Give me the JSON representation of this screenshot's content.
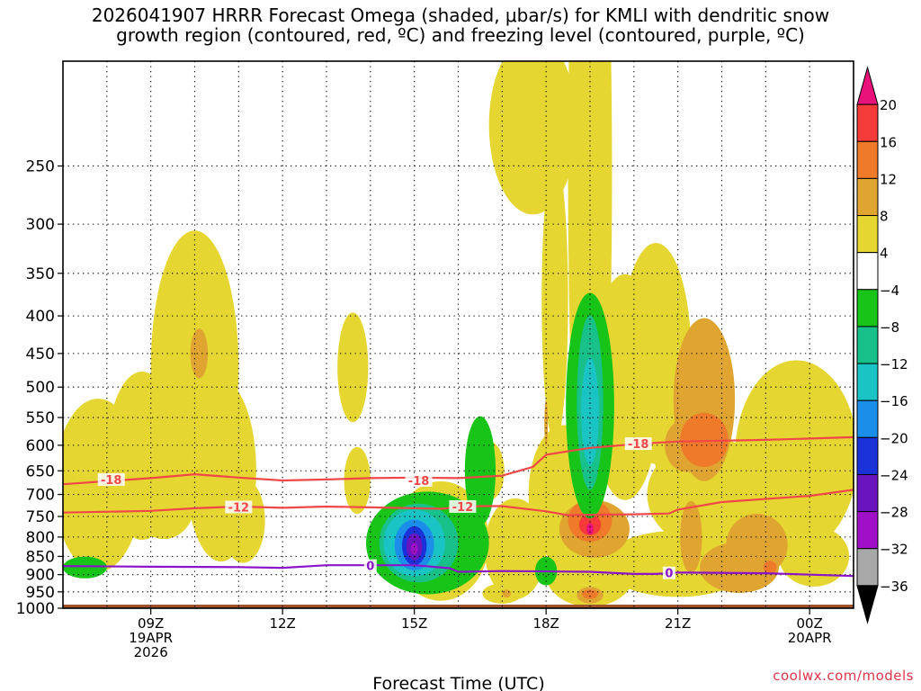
{
  "title_line1": "2026041907 HRRR Forecast Omega (shaded, μbar/s) for KMLI with dendritic snow",
  "title_line2": "growth region (contoured, red, ºC) and freezing level (contoured, purple, ºC)",
  "brand": "coolwx.com/models",
  "chart_data": {
    "type": "heatmap",
    "title": "2026041907 HRRR Forecast Omega (shaded, μbar/s) for KMLI with dendritic snow growth region (contoured, red, ºC) and freezing level (contoured, purple, ºC)",
    "xlabel": "Forecast Time (UTC)",
    "ylabel": "",
    "x_range_hours_since_07Z": [
      0,
      18
    ],
    "y_range_hPa": [
      1000,
      180
    ],
    "y_ticks": [
      250,
      300,
      350,
      400,
      450,
      500,
      550,
      600,
      650,
      700,
      750,
      800,
      850,
      900,
      950,
      1000
    ],
    "x_ticks": [
      {
        "hour": 2,
        "lines": [
          "09Z",
          "19APR",
          "2026"
        ]
      },
      {
        "hour": 5,
        "lines": [
          "12Z"
        ]
      },
      {
        "hour": 8,
        "lines": [
          "15Z"
        ]
      },
      {
        "hour": 11,
        "lines": [
          "18Z"
        ]
      },
      {
        "hour": 14,
        "lines": [
          "21Z"
        ]
      },
      {
        "hour": 17,
        "lines": [
          "00Z",
          "20APR"
        ]
      }
    ],
    "colorbar": {
      "levels": [
        20,
        16,
        12,
        8,
        4,
        -4,
        -8,
        -12,
        -16,
        -20,
        -24,
        -28,
        -32,
        -36
      ],
      "labels": [
        "20",
        "16",
        "12",
        "8",
        "4",
        "−4",
        "−8",
        "−12",
        "−16",
        "−20",
        "−24",
        "−28",
        "−32",
        "−36"
      ],
      "colors": [
        "#e8127a",
        "#f53a3a",
        "#ef7a2a",
        "#dfa530",
        "#e6d632",
        "#ffffff",
        "#18c418",
        "#18c08a",
        "#1ac4c4",
        "#1a8ee8",
        "#1a32d8",
        "#6a14c0",
        "#a010c8",
        "#a8a8a8",
        "#000000"
      ]
    },
    "contours": {
      "snow_minus18": {
        "label": "-18",
        "color": "#f04848",
        "points": [
          [
            -2,
            680
          ],
          [
            0,
            678
          ],
          [
            2,
            665
          ],
          [
            3,
            657
          ],
          [
            4,
            664
          ],
          [
            5,
            670
          ],
          [
            6,
            668
          ],
          [
            7,
            665
          ],
          [
            8,
            664
          ],
          [
            9,
            665
          ],
          [
            10,
            660
          ],
          [
            10.7,
            642
          ],
          [
            11,
            618
          ],
          [
            12,
            605
          ],
          [
            13,
            598
          ],
          [
            14,
            593
          ],
          [
            16,
            590
          ],
          [
            18,
            585
          ]
        ]
      },
      "snow_minus12": {
        "label": "-12",
        "color": "#f04848",
        "points": [
          [
            -2,
            741
          ],
          [
            0,
            741
          ],
          [
            2,
            737
          ],
          [
            3,
            731
          ],
          [
            4,
            727
          ],
          [
            5,
            730
          ],
          [
            6,
            727
          ],
          [
            7,
            729
          ],
          [
            8,
            731
          ],
          [
            8.6,
            732
          ],
          [
            9.5,
            726
          ],
          [
            10,
            726
          ],
          [
            11,
            738
          ],
          [
            11.5,
            747
          ],
          [
            12,
            746
          ],
          [
            13,
            745
          ],
          [
            13.8,
            743
          ],
          [
            14,
            734
          ],
          [
            15,
            717
          ],
          [
            17,
            703
          ],
          [
            18,
            690
          ]
        ]
      },
      "freezing_level": {
        "label": "0",
        "color": "#8a14c8",
        "points": [
          [
            -2,
            876
          ],
          [
            0,
            876
          ],
          [
            2,
            878
          ],
          [
            4,
            879
          ],
          [
            5,
            881
          ],
          [
            6,
            874
          ],
          [
            7,
            874
          ],
          [
            8,
            874
          ],
          [
            8.8,
            882
          ],
          [
            9,
            892
          ],
          [
            10,
            890
          ],
          [
            12,
            892
          ],
          [
            13,
            898
          ],
          [
            13.5,
            898
          ],
          [
            14,
            894
          ],
          [
            16,
            896
          ],
          [
            18,
            904
          ]
        ]
      }
    },
    "contour_label_positions": [
      {
        "label": "-18",
        "x": 1.1,
        "y": 668
      },
      {
        "label": "-18",
        "x": 8.1,
        "y": 670
      },
      {
        "label": "-18",
        "x": 13.1,
        "y": 597
      },
      {
        "label": "-12",
        "x": 4.0,
        "y": 728
      },
      {
        "label": "-12",
        "x": 9.1,
        "y": 727
      },
      {
        "label": "0",
        "x": 7.0,
        "y": 875
      },
      {
        "label": "0",
        "x": 13.8,
        "y": 895
      }
    ],
    "omega_regions": [
      {
        "value": 4,
        "color": "#e6d632",
        "ellipses": [
          [
            0.8,
            680,
            1.0,
            180
          ],
          [
            1.8,
            620,
            0.8,
            160
          ],
          [
            3.0,
            470,
            1.0,
            190
          ],
          [
            2.3,
            720,
            0.7,
            80
          ],
          [
            3.6,
            650,
            0.8,
            180
          ],
          [
            4.1,
            760,
            0.5,
            100
          ],
          [
            6.6,
            470,
            0.35,
            80
          ],
          [
            6.7,
            670,
            0.3,
            70
          ],
          [
            9.7,
            650,
            0.35,
            60
          ],
          [
            10.3,
            830,
            0.7,
            130
          ],
          [
            8.6,
            810,
            1.1,
            150
          ],
          [
            10.7,
            220,
            1.0,
            60
          ],
          [
            11.2,
            380,
            0.3,
            160
          ],
          [
            10.0,
            955,
            0.45,
            30
          ],
          [
            12.0,
            255,
            0.5,
            220
          ],
          [
            12.8,
            500,
            0.8,
            170
          ],
          [
            13.5,
            450,
            0.8,
            150
          ],
          [
            14.3,
            570,
            0.9,
            150
          ],
          [
            14.8,
            700,
            1.5,
            120
          ],
          [
            14.0,
            870,
            1.7,
            90
          ],
          [
            11.4,
            700,
            0.8,
            150
          ],
          [
            12.0,
            900,
            1.0,
            90
          ],
          [
            16.7,
            620,
            1.4,
            180
          ],
          [
            17.1,
            850,
            0.8,
            80
          ]
        ]
      },
      {
        "value": 8,
        "color": "#dfa530",
        "ellipses": [
          [
            3.1,
            450,
            0.2,
            35
          ],
          [
            10.1,
            955,
            0.1,
            12
          ],
          [
            11.0,
            560,
            0.04,
            40
          ],
          [
            12.0,
            960,
            0.3,
            25
          ],
          [
            14.6,
            520,
            0.7,
            130
          ],
          [
            14.3,
            800,
            0.25,
            90
          ],
          [
            15.8,
            820,
            0.7,
            80
          ],
          [
            15.4,
            880,
            0.9,
            70
          ],
          [
            14.2,
            600,
            0.5,
            50
          ],
          [
            12.1,
            780,
            0.8,
            70
          ]
        ]
      },
      {
        "value": 12,
        "color": "#ef7a2a",
        "ellipses": [
          [
            14.6,
            590,
            0.55,
            50
          ],
          [
            12.0,
            760,
            0.5,
            50
          ],
          [
            16.1,
            880,
            0.15,
            18
          ],
          [
            12.0,
            957,
            0.18,
            14
          ]
        ]
      },
      {
        "value": 16,
        "color": "#f53a3a",
        "ellipses": [
          [
            12.0,
            770,
            0.25,
            25
          ]
        ]
      },
      {
        "value": 20,
        "color": "#e8127a",
        "ellipses": [
          [
            12.0,
            780,
            0.08,
            14
          ]
        ]
      },
      {
        "value": -4,
        "color": "#18c418",
        "ellipses": [
          [
            8.3,
            815,
            1.4,
            130
          ],
          [
            9.5,
            650,
            0.35,
            110
          ],
          [
            0.5,
            880,
            0.5,
            30
          ],
          [
            11.0,
            890,
            0.25,
            40
          ],
          [
            12.0,
            530,
            0.55,
            180
          ]
        ]
      },
      {
        "value": -8,
        "color": "#18c08a",
        "ellipses": [
          [
            8.1,
            815,
            0.9,
            100
          ],
          [
            12.0,
            525,
            0.3,
            140
          ]
        ]
      },
      {
        "value": -12,
        "color": "#1ac4c4",
        "ellipses": [
          [
            8.0,
            815,
            0.7,
            85
          ],
          [
            12.0,
            540,
            0.2,
            90
          ]
        ]
      },
      {
        "value": -16,
        "color": "#1a8ee8",
        "ellipses": [
          [
            8.0,
            820,
            0.45,
            65
          ]
        ]
      },
      {
        "value": -20,
        "color": "#1a32d8",
        "ellipses": [
          [
            8.0,
            822,
            0.28,
            50
          ]
        ]
      },
      {
        "value": -24,
        "color": "#6a14c0",
        "ellipses": [
          [
            8.0,
            825,
            0.18,
            35
          ]
        ]
      },
      {
        "value": -28,
        "color": "#a010c8",
        "ellipses": [
          [
            8.0,
            830,
            0.08,
            15
          ]
        ]
      }
    ],
    "ground_color": "#a0522d"
  }
}
